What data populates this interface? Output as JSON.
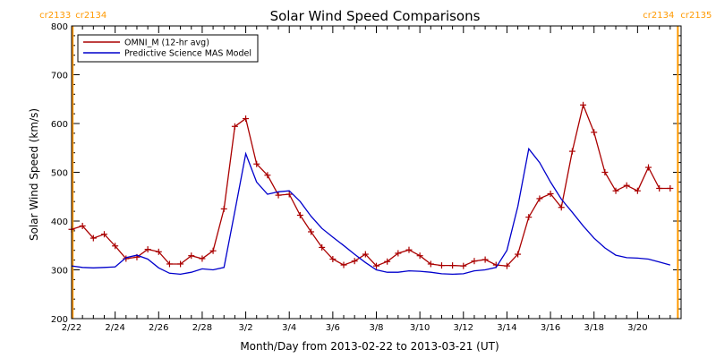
{
  "chart_data": {
    "type": "line",
    "title": "Solar Wind Speed Comparisons",
    "xlabel": "Month/Day from 2013-02-22 to 2013-03-21 (UT)",
    "ylabel": "Solar Wind Speed (km/s)",
    "xlim": [
      "2013-02-22",
      "2013-03-22"
    ],
    "ylim": [
      200,
      800
    ],
    "y_ticks": [
      200,
      300,
      400,
      500,
      600,
      700,
      800
    ],
    "x_ticks": [
      {
        "day": 0,
        "label": "2/22"
      },
      {
        "day": 2,
        "label": "2/24"
      },
      {
        "day": 4,
        "label": "2/26"
      },
      {
        "day": 6,
        "label": "2/28"
      },
      {
        "day": 8,
        "label": "3/2"
      },
      {
        "day": 10,
        "label": "3/4"
      },
      {
        "day": 12,
        "label": "3/6"
      },
      {
        "day": 14,
        "label": "3/8"
      },
      {
        "day": 16,
        "label": "3/10"
      },
      {
        "day": 18,
        "label": "3/12"
      },
      {
        "day": 20,
        "label": "3/14"
      },
      {
        "day": 22,
        "label": "3/16"
      },
      {
        "day": 24,
        "label": "3/18"
      },
      {
        "day": 26,
        "label": "3/20"
      }
    ],
    "cr_markers": [
      {
        "day": 0.05,
        "left": "cr2133",
        "right": "cr2134",
        "color": "#ff9900"
      },
      {
        "day": 27.85,
        "left": "cr2134",
        "right": "cr2135",
        "color": "#ff9900"
      }
    ],
    "legend_position": "top-left",
    "series": [
      {
        "name": "OMNI_M (12-hr avg)",
        "color": "#aa0000",
        "markers": "plus",
        "x": [
          0.0,
          0.5,
          1.0,
          1.5,
          2.0,
          2.5,
          3.0,
          3.5,
          4.0,
          4.5,
          5.0,
          5.5,
          6.0,
          6.5,
          7.0,
          7.5,
          8.0,
          8.5,
          9.0,
          9.5,
          10.0,
          10.5,
          11.0,
          11.5,
          12.0,
          12.5,
          13.0,
          13.5,
          14.0,
          14.5,
          15.0,
          15.5,
          16.0,
          16.5,
          17.0,
          17.5,
          18.0,
          18.5,
          19.0,
          19.5,
          20.0,
          20.5,
          21.0,
          21.5,
          22.0,
          22.5,
          23.0,
          23.5,
          24.0,
          24.5,
          25.0,
          25.5,
          26.0,
          26.5,
          27.0,
          27.5
        ],
        "y": [
          383,
          390,
          365,
          373,
          349,
          323,
          326,
          342,
          337,
          312,
          312,
          329,
          323,
          339,
          425,
          594,
          610,
          517,
          494,
          453,
          455,
          412,
          378,
          346,
          322,
          310,
          318,
          332,
          308,
          317,
          334,
          341,
          329,
          312,
          309,
          309,
          308,
          318,
          321,
          310,
          308,
          332,
          408,
          446,
          456,
          428,
          543,
          638,
          582,
          500,
          462,
          473,
          462,
          510,
          467,
          467
        ]
      },
      {
        "name": "Predictive Science MAS Model",
        "color": "#0000cc",
        "markers": "none",
        "x": [
          0.0,
          0.5,
          1.0,
          1.5,
          2.0,
          2.5,
          3.0,
          3.5,
          4.0,
          4.5,
          5.0,
          5.5,
          6.0,
          6.5,
          7.0,
          7.5,
          8.0,
          8.5,
          9.0,
          9.5,
          10.0,
          10.5,
          11.0,
          11.5,
          12.0,
          12.5,
          13.0,
          13.5,
          14.0,
          14.5,
          15.0,
          15.5,
          16.0,
          16.5,
          17.0,
          17.5,
          18.0,
          18.5,
          19.0,
          19.5,
          20.0,
          20.5,
          21.0,
          21.5,
          22.0,
          22.5,
          23.0,
          23.5,
          24.0,
          24.5,
          25.0,
          25.5,
          26.0,
          26.5,
          27.0,
          27.5
        ],
        "y": [
          308,
          305,
          304,
          305,
          306,
          325,
          330,
          322,
          304,
          293,
          291,
          295,
          302,
          300,
          305,
          420,
          538,
          480,
          455,
          460,
          462,
          440,
          410,
          385,
          367,
          350,
          332,
          315,
          300,
          295,
          295,
          298,
          297,
          295,
          292,
          291,
          292,
          298,
          300,
          305,
          340,
          430,
          548,
          520,
          480,
          445,
          418,
          390,
          365,
          345,
          330,
          325,
          324,
          322,
          316,
          310
        ]
      }
    ]
  }
}
